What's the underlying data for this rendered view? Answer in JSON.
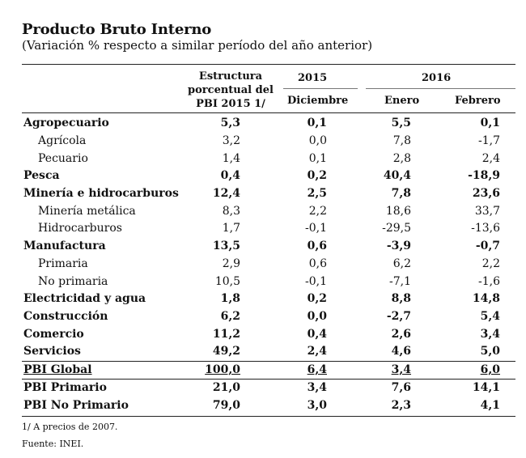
{
  "title": "Producto Bruto Interno",
  "subtitle": "(Variación % respecto a similar período del año anterior)",
  "headers": {
    "structure_l1": "Estructura",
    "structure_l2": "porcentual del",
    "structure_l3": "PBI 2015 1/",
    "year_2015": "2015",
    "year_2016": "2016",
    "month_dec": "Diciembre",
    "month_jan": "Enero",
    "month_feb": "Febrero"
  },
  "rows": [
    {
      "label": "Agropecuario",
      "est": "5,3",
      "dic": "0,1",
      "ene": "5,5",
      "feb": "0,1"
    },
    {
      "label": "Agrícola",
      "est": "3,2",
      "dic": "0,0",
      "ene": "7,8",
      "feb": "-1,7"
    },
    {
      "label": "Pecuario",
      "est": "1,4",
      "dic": "0,1",
      "ene": "2,8",
      "feb": "2,4"
    },
    {
      "label": "Pesca",
      "est": "0,4",
      "dic": "0,2",
      "ene": "40,4",
      "feb": "-18,9"
    },
    {
      "label": "Minería e hidrocarburos",
      "est": "12,4",
      "dic": "2,5",
      "ene": "7,8",
      "feb": "23,6"
    },
    {
      "label": "Minería metálica",
      "est": "8,3",
      "dic": "2,2",
      "ene": "18,6",
      "feb": "33,7"
    },
    {
      "label": "Hidrocarburos",
      "est": "1,7",
      "dic": "-0,1",
      "ene": "-29,5",
      "feb": "-13,6"
    },
    {
      "label": "Manufactura",
      "est": "13,5",
      "dic": "0,6",
      "ene": "-3,9",
      "feb": "-0,7"
    },
    {
      "label": "Primaria",
      "est": "2,9",
      "dic": "0,6",
      "ene": "6,2",
      "feb": "2,2"
    },
    {
      "label": "No primaria",
      "est": "10,5",
      "dic": "-0,1",
      "ene": "-7,1",
      "feb": "-1,6"
    },
    {
      "label": "Electricidad y agua",
      "est": "1,8",
      "dic": "0,2",
      "ene": "8,8",
      "feb": "14,8"
    },
    {
      "label": "Construcción",
      "est": "6,2",
      "dic": "0,0",
      "ene": "-2,7",
      "feb": "5,4"
    },
    {
      "label": "Comercio",
      "est": "11,2",
      "dic": "0,4",
      "ene": "2,6",
      "feb": "3,4"
    },
    {
      "label": "Servicios",
      "est": "49,2",
      "dic": "2,4",
      "ene": "4,6",
      "feb": "5,0"
    },
    {
      "label": "PBI Global",
      "est": "100,0",
      "dic": "6,4",
      "ene": "3,4",
      "feb": "6,0"
    },
    {
      "label": "PBI Primario",
      "est": "21,0",
      "dic": "3,4",
      "ene": "7,6",
      "feb": "14,1"
    },
    {
      "label": "PBI No Primario",
      "est": "79,0",
      "dic": "3,0",
      "ene": "2,3",
      "feb": "4,1"
    }
  ],
  "footnote": "1/ A precios de 2007.",
  "source": "Fuente: INEI."
}
